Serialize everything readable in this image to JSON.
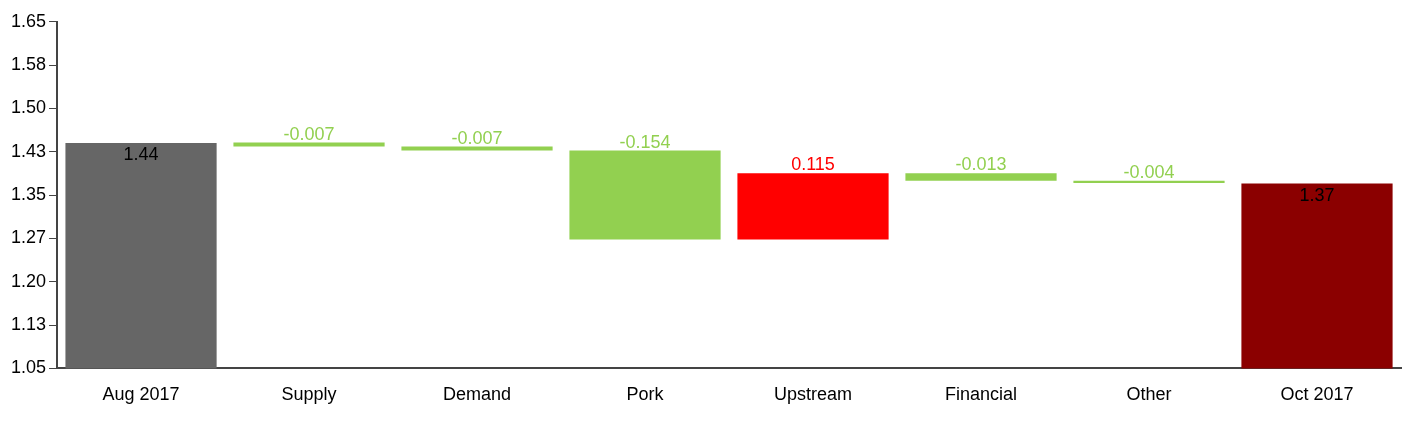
{
  "chart_data": {
    "type": "bar",
    "categories": [
      "Aug 2017",
      "Supply",
      "Demand",
      "Pork",
      "Upstream",
      "Financial",
      "Other",
      "Oct 2017"
    ],
    "values": [
      1.44,
      -0.007,
      -0.007,
      -0.154,
      0.115,
      -0.013,
      -0.004,
      1.37
    ],
    "base": [
      null,
      1.441,
      1.434,
      1.427,
      1.273,
      1.388,
      1.375,
      null
    ],
    "colors": [
      "#666666",
      "#92d050",
      "#92d050",
      "#92d050",
      "#ff0000",
      "#92d050",
      "#92d050",
      "#8b0000"
    ],
    "ylim": [
      1.05,
      1.65
    ],
    "yticks": [
      1.05,
      {
        "value": 1.125,
        "label": "1.13"
      },
      {
        "value": 1.2,
        "label": "1.20"
      },
      {
        "value": 1.275,
        "label": "1.27"
      },
      1.35,
      {
        "value": 1.425,
        "label": "1.43"
      },
      {
        "value": 1.5,
        "label": "1.50"
      },
      {
        "value": 1.575,
        "label": "1.58"
      },
      1.65
    ],
    "data_labels": true,
    "grid": false,
    "legend": false
  }
}
